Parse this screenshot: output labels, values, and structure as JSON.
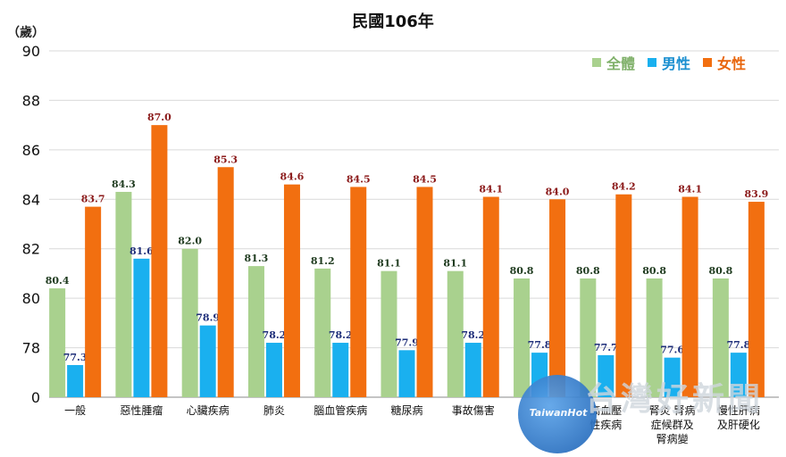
{
  "chart_data": {
    "type": "bar",
    "title": "民國106年",
    "unit_label": "（歲）",
    "categories": [
      "一般",
      "惡性腫瘤",
      "心臟疾病",
      "肺炎",
      "腦血管疾病",
      "糖尿病",
      "事故傷害",
      "",
      "高血壓\n性疾病",
      "腎炎 腎病\n症候群及\n腎病變",
      "慢性肝病\n及肝硬化"
    ],
    "series": [
      {
        "name": "全體",
        "color": "#a9d18e",
        "values": [
          80.4,
          84.3,
          82.0,
          81.3,
          81.2,
          81.1,
          81.1,
          80.8,
          80.8,
          80.8,
          80.8
        ]
      },
      {
        "name": "男性",
        "color": "#1ab0ef",
        "values": [
          77.3,
          81.6,
          78.9,
          78.2,
          78.2,
          77.9,
          78.2,
          77.8,
          77.7,
          77.6,
          77.8
        ]
      },
      {
        "name": "女性",
        "color": "#f26f10",
        "values": [
          83.7,
          87.0,
          85.3,
          84.6,
          84.5,
          84.5,
          84.1,
          84.0,
          84.2,
          84.1,
          83.9
        ]
      }
    ],
    "y_ticks": [
      0,
      78,
      80,
      82,
      84,
      86,
      88,
      90
    ],
    "ylim_visual": [
      76,
      90
    ],
    "legend_position": "top-right",
    "data_label_colors": [
      "#1f3b1f",
      "#1f2f7a",
      "#8b1a1a"
    ]
  },
  "watermark": {
    "logo_text": "TaiwanHot",
    "site_text": "台灣好新聞"
  }
}
